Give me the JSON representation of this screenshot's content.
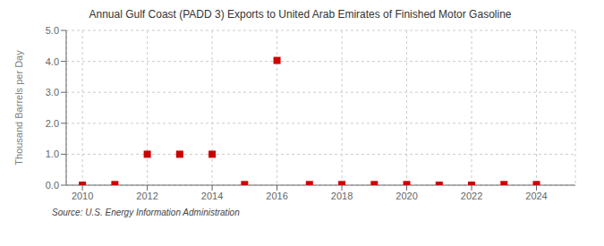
{
  "chart_data": {
    "type": "scatter",
    "title": "Annual Gulf Coast (PADD 3) Exports to United Arab Emirates of Finished Motor Gasoline",
    "ylabel": "Thousand Barrels per Day",
    "annotations": [
      "Source: U.S. Energy Information Administration"
    ],
    "x": [
      2010,
      2011,
      2012,
      2013,
      2014,
      2015,
      2016,
      2017,
      2018,
      2019,
      2020,
      2021,
      2022,
      2023,
      2024
    ],
    "values": [
      0.0,
      0.02,
      1.0,
      1.0,
      1.0,
      0.02,
      4.03,
      0.02,
      0.02,
      0.02,
      0.02,
      0.0,
      0.0,
      0.02,
      0.02
    ],
    "color": "#cc0000",
    "marker": "square",
    "xlim": [
      2009.5,
      2025.2
    ],
    "ylim": [
      0.0,
      5.0
    ],
    "xticks": [
      2010,
      2012,
      2014,
      2016,
      2018,
      2020,
      2022,
      2024
    ],
    "yticks": [
      {
        "value": 0.0,
        "label": "0.0"
      },
      {
        "value": 1.0,
        "label": "1.0"
      },
      {
        "value": 2.0,
        "label": "2.0"
      },
      {
        "value": 3.0,
        "label": "3.0"
      },
      {
        "value": 4.0,
        "label": "4.0"
      },
      {
        "value": 5.0,
        "label": "5.0"
      }
    ],
    "grid": true
  }
}
